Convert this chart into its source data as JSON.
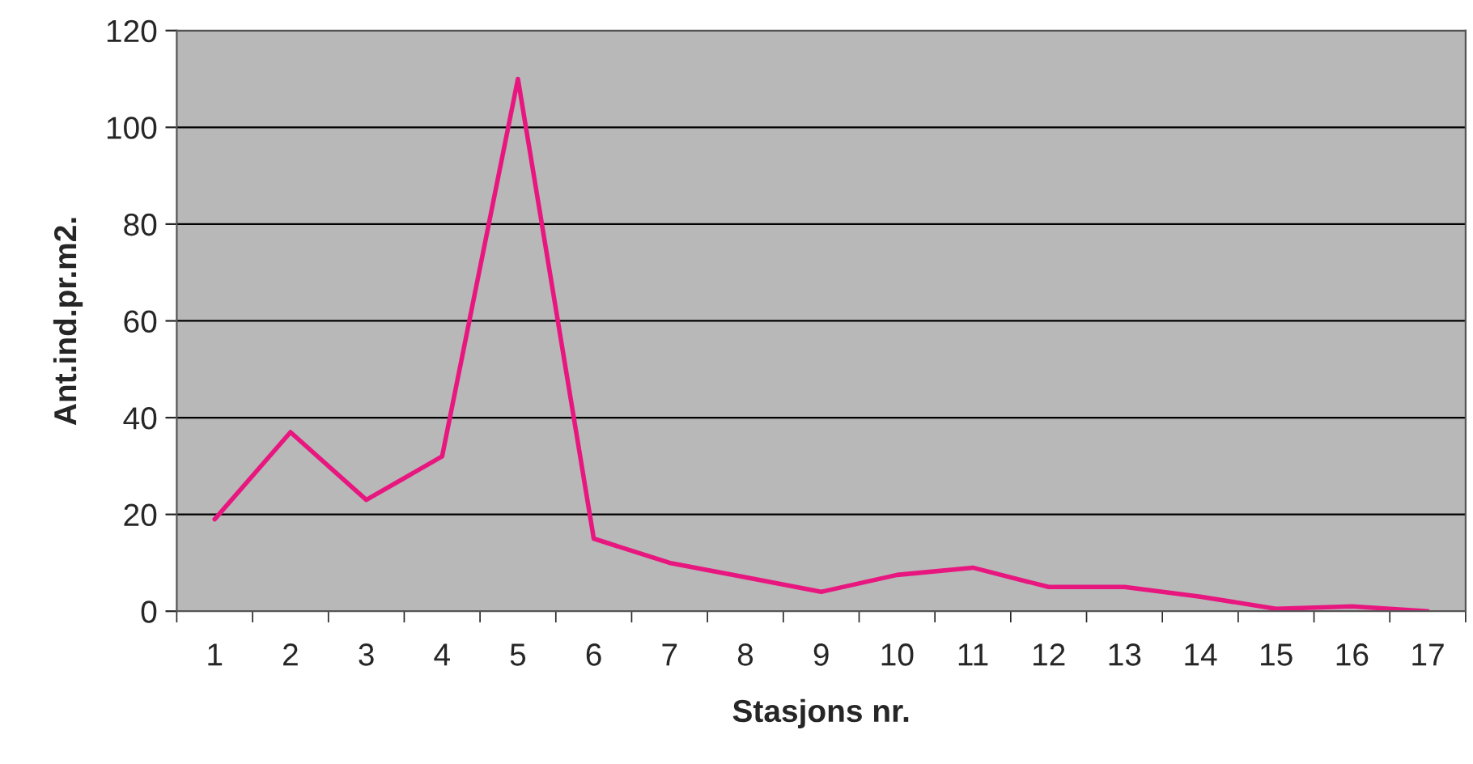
{
  "chart_data": {
    "type": "line",
    "xlabel": "Stasjons nr.",
    "ylabel": "Ant.ind.pr.m2.",
    "categories": [
      "1",
      "2",
      "3",
      "4",
      "5",
      "6",
      "7",
      "8",
      "9",
      "10",
      "11",
      "12",
      "13",
      "14",
      "15",
      "16",
      "17"
    ],
    "series": [
      {
        "color": "#e8177f",
        "values": [
          19,
          37,
          23,
          32,
          110,
          15,
          10,
          7,
          4,
          7.5,
          9,
          5,
          5,
          3,
          0.5,
          1,
          0
        ]
      }
    ],
    "ylim": [
      0,
      120
    ],
    "yticks": [
      0,
      20,
      40,
      60,
      80,
      100,
      120
    ],
    "grid": "y",
    "legend": false,
    "marker": "none",
    "line_style": "solid"
  }
}
